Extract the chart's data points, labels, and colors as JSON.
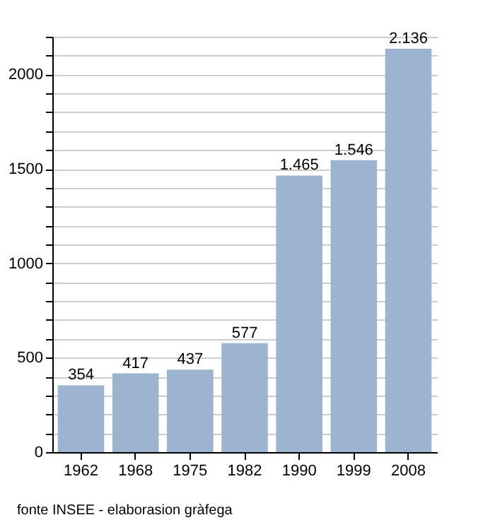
{
  "chart_data": {
    "type": "bar",
    "categories": [
      "1962",
      "1968",
      "1975",
      "1982",
      "1990",
      "1999",
      "2008"
    ],
    "values": [
      354,
      417,
      437,
      577,
      1465,
      1546,
      2136
    ],
    "value_labels": [
      "354",
      "417",
      "437",
      "577",
      "1.465",
      "1.546",
      "2.136"
    ],
    "color": "#9cb4cf",
    "ylim": [
      0,
      2200
    ],
    "yticks": [
      0,
      {
        "value": 100,
        "label": null
      },
      {
        "value": 200,
        "label": null
      },
      {
        "value": 300,
        "label": null
      },
      {
        "value": 400,
        "label": null
      },
      500,
      {
        "value": 600,
        "label": null
      },
      {
        "value": 700,
        "label": null
      },
      {
        "value": 800,
        "label": null
      },
      {
        "value": 900,
        "label": null
      },
      1000,
      {
        "value": 1100,
        "label": null
      },
      {
        "value": 1200,
        "label": null
      },
      {
        "value": 1300,
        "label": null
      },
      {
        "value": 1400,
        "label": null
      },
      1500,
      {
        "value": 1600,
        "label": null
      },
      {
        "value": 1700,
        "label": null
      },
      {
        "value": 1800,
        "label": null
      },
      {
        "value": 1900,
        "label": null
      },
      2000,
      {
        "value": 2100,
        "label": null
      },
      {
        "value": 2200,
        "label": null
      }
    ],
    "grid": true,
    "annotations": [
      "fonte INSEE - elaborasion gràfega"
    ]
  }
}
